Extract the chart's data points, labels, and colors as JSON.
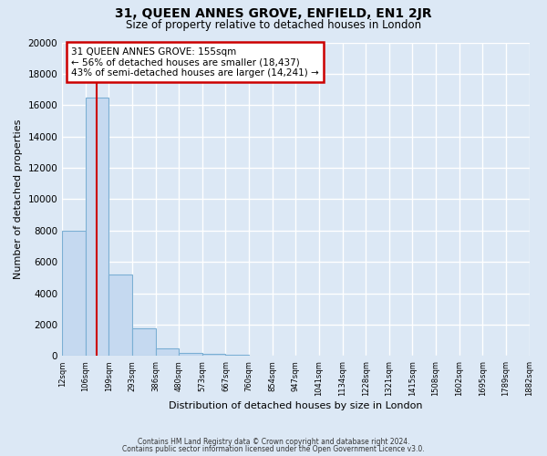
{
  "title": "31, QUEEN ANNES GROVE, ENFIELD, EN1 2JR",
  "subtitle": "Size of property relative to detached houses in London",
  "xlabel": "Distribution of detached houses by size in London",
  "ylabel": "Number of detached properties",
  "bin_labels": [
    "12sqm",
    "106sqm",
    "199sqm",
    "293sqm",
    "386sqm",
    "480sqm",
    "573sqm",
    "667sqm",
    "760sqm",
    "854sqm",
    "947sqm",
    "1041sqm",
    "1134sqm",
    "1228sqm",
    "1321sqm",
    "1415sqm",
    "1508sqm",
    "1602sqm",
    "1695sqm",
    "1789sqm",
    "1882sqm"
  ],
  "bar_heights": [
    8000,
    16500,
    5200,
    1750,
    500,
    200,
    150,
    100,
    0,
    0,
    0,
    0,
    0,
    0,
    0,
    0,
    0,
    0,
    0,
    0
  ],
  "bar_color": "#c5d9f0",
  "bar_edge_color": "#7bafd4",
  "vline_x": 1.48,
  "vline_color": "#cc0000",
  "annotation_title": "31 QUEEN ANNES GROVE: 155sqm",
  "annotation_line1": "← 56% of detached houses are smaller (18,437)",
  "annotation_line2": "43% of semi-detached houses are larger (14,241) →",
  "annotation_box_color": "#ffffff",
  "annotation_box_edge": "#cc0000",
  "ylim": [
    0,
    20000
  ],
  "yticks": [
    0,
    2000,
    4000,
    6000,
    8000,
    10000,
    12000,
    14000,
    16000,
    18000,
    20000
  ],
  "footer1": "Contains HM Land Registry data © Crown copyright and database right 2024.",
  "footer2": "Contains public sector information licensed under the Open Government Licence v3.0.",
  "bg_color": "#dce8f5",
  "plot_bg_color": "#dce8f5",
  "grid_color": "#ffffff"
}
